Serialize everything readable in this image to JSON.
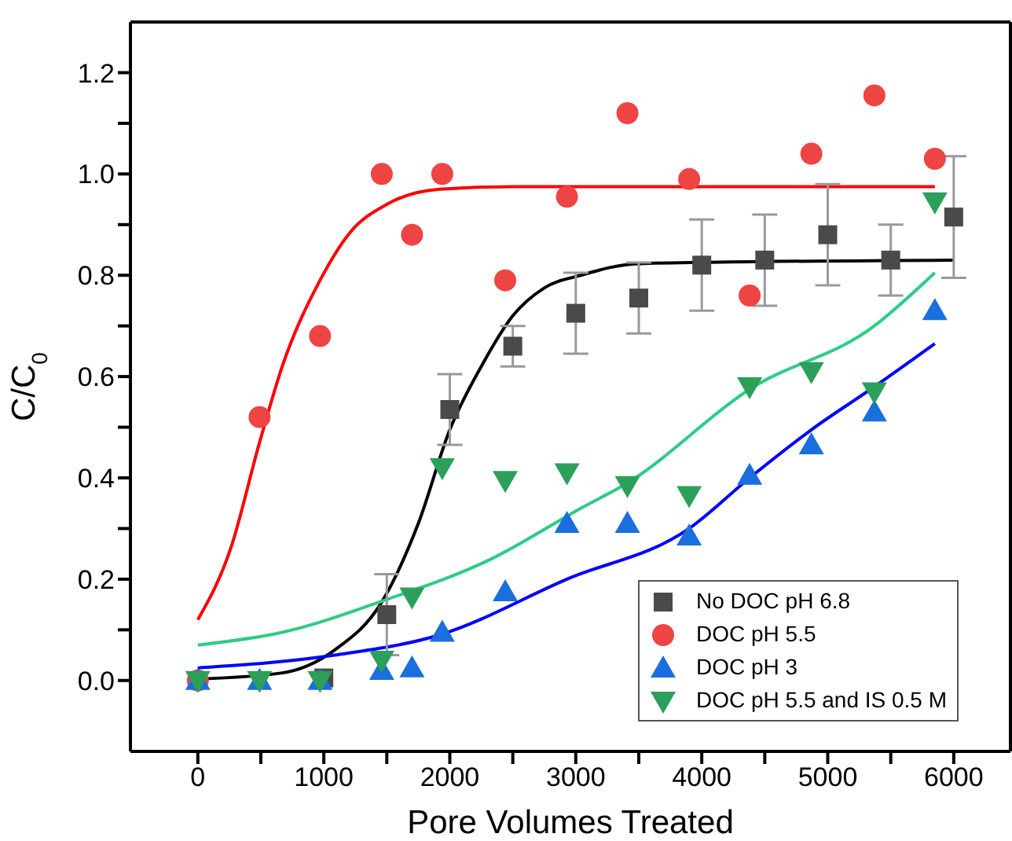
{
  "chart_data": {
    "type": "scatter",
    "xlabel": "Pore Volumes Treated",
    "ylabel": "C/C$_{0}$",
    "xlim": [
      -535,
      6450
    ],
    "ylim": [
      -0.14,
      1.3
    ],
    "xticks": [
      0,
      {
        "value": 500,
        "label": null
      },
      1000,
      {
        "value": 1500,
        "label": null
      },
      2000,
      {
        "value": 2500,
        "label": null
      },
      3000,
      {
        "value": 3500,
        "label": null
      },
      4000,
      {
        "value": 4500,
        "label": null
      },
      5000,
      {
        "value": 5500,
        "label": null
      },
      6000
    ],
    "yticks": [
      {
        "value": 0,
        "label": "0.0"
      },
      {
        "value": 0.1,
        "label": null
      },
      {
        "value": 0.2,
        "label": "0.2"
      },
      {
        "value": 0.3,
        "label": null
      },
      {
        "value": 0.4,
        "label": "0.4"
      },
      {
        "value": 0.5,
        "label": null
      },
      {
        "value": 0.6,
        "label": "0.6"
      },
      {
        "value": 0.7,
        "label": null
      },
      {
        "value": 0.8,
        "label": "0.8"
      },
      {
        "value": 0.9,
        "label": null
      },
      {
        "value": 1.0,
        "label": "1.0"
      },
      {
        "value": 1.1,
        "label": null
      },
      {
        "value": 1.2,
        "label": "1.2"
      }
    ],
    "legend": "bottom right",
    "series": [
      {
        "type": "line",
        "color": "#ff0000",
        "x": [
          0,
          260,
          490,
          670,
          970,
          1210,
          1500,
          1920,
          2500,
          3500,
          5850
        ],
        "values": [
          0.12,
          0.26,
          0.47,
          0.62,
          0.79,
          0.885,
          0.94,
          0.97,
          0.975,
          0.975,
          0.975
        ]
      },
      {
        "type": "line",
        "color": "#000000",
        "x": [
          0,
          670,
          1085,
          1460,
          1750,
          2000,
          2250,
          2500,
          2750,
          3040,
          3500,
          6000
        ],
        "values": [
          0.003,
          0.015,
          0.06,
          0.155,
          0.31,
          0.495,
          0.62,
          0.72,
          0.775,
          0.8,
          0.823,
          0.83
        ]
      },
      {
        "type": "line",
        "color": "#2ecc85",
        "x": [
          0,
          670,
          1500,
          2330,
          3040,
          3410,
          4380,
          5370,
          5850
        ],
        "values": [
          0.07,
          0.095,
          0.16,
          0.24,
          0.34,
          0.39,
          0.575,
          0.7,
          0.805
        ]
      },
      {
        "type": "line",
        "color": "#0000ff",
        "x": [
          0,
          1085,
          1920,
          2930,
          3900,
          4380,
          4870,
          5370,
          5850
        ],
        "values": [
          0.025,
          0.05,
          0.09,
          0.2,
          0.3,
          0.4,
          0.495,
          0.58,
          0.665
        ]
      },
      {
        "name": "No DOC pH 6.8",
        "color": "#4a4a4a",
        "marker": "square",
        "x": [
          1000,
          1500,
          2000,
          2500,
          3000,
          3500,
          4000,
          4500,
          5000,
          5500,
          6000
        ],
        "values": [
          0.005,
          0.13,
          0.535,
          0.66,
          0.725,
          0.755,
          0.82,
          0.83,
          0.88,
          0.83,
          0.915
        ],
        "errors": [
          null,
          0.08,
          0.07,
          0.04,
          0.08,
          0.07,
          0.09,
          0.09,
          0.1,
          0.07,
          0.12
        ]
      },
      {
        "name": "DOC pH 5.5",
        "color": "#ee4444",
        "marker": "circle",
        "x": [
          0,
          490,
          970,
          1460,
          1700,
          1940,
          2440,
          2930,
          3410,
          3900,
          4380,
          4870,
          5370,
          5850
        ],
        "values": [
          0,
          0.52,
          0.68,
          1.0,
          0.88,
          1.0,
          0.79,
          0.955,
          1.12,
          0.99,
          0.76,
          1.04,
          1.155,
          1.03
        ]
      },
      {
        "name": "DOC pH 3",
        "color": "#1a6fdf",
        "marker": "triangle",
        "x": [
          0,
          490,
          970,
          1460,
          1700,
          1940,
          2440,
          2930,
          3410,
          3900,
          4380,
          4870,
          5370,
          5850
        ],
        "values": [
          0,
          0,
          0,
          0.02,
          0.025,
          0.095,
          0.175,
          0.31,
          0.31,
          0.285,
          0.405,
          0.465,
          0.53,
          0.73
        ]
      },
      {
        "name": "DOC pH 5.5 and IS 0.5 M",
        "color": "#2ca05a",
        "marker": "triangle-down",
        "x": [
          0,
          490,
          970,
          1460,
          1700,
          1940,
          2440,
          2930,
          3410,
          3900,
          4380,
          4870,
          5370,
          5850
        ],
        "values": [
          0,
          0,
          0,
          0.04,
          0.165,
          0.42,
          0.395,
          0.41,
          0.385,
          0.365,
          0.58,
          0.61,
          0.57,
          0.945
        ]
      }
    ]
  }
}
